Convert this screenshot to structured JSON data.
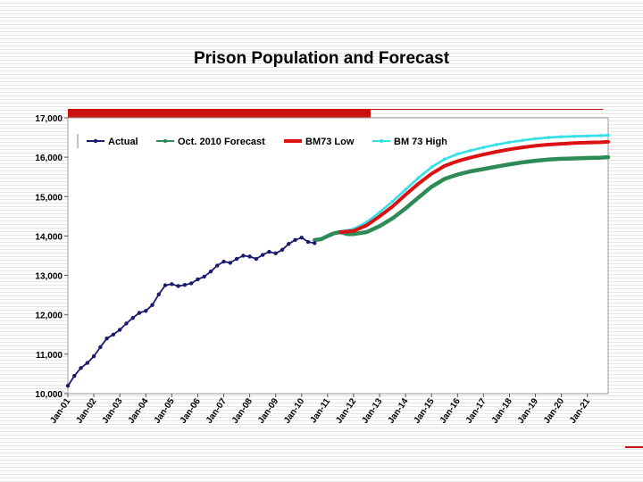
{
  "slide": {
    "title": "Prison Population and Forecast"
  },
  "chart_data": {
    "type": "line",
    "title": "Prison Population and Forecast",
    "xlabel": "",
    "ylabel": "",
    "ylim": [
      10000,
      17000
    ],
    "xlim": [
      2001.0,
      2021.8
    ],
    "y_ticks": [
      10000,
      11000,
      12000,
      13000,
      14000,
      15000,
      16000,
      17000
    ],
    "y_tick_labels": [
      "10,000",
      "11,000",
      "12,000",
      "13,000",
      "14,000",
      "15,000",
      "16,000",
      "17,000"
    ],
    "x_ticks": [
      2001,
      2002,
      2003,
      2004,
      2005,
      2006,
      2007,
      2008,
      2009,
      2010,
      2011,
      2012,
      2013,
      2014,
      2015,
      2016,
      2017,
      2018,
      2019,
      2020,
      2021
    ],
    "x_tick_labels": [
      "Jan-01",
      "Jan-02",
      "Jan-03",
      "Jan-04",
      "Jan-05",
      "Jan-06",
      "Jan-07",
      "Jan-08",
      "Jan-09",
      "Jan-10",
      "Jan-11",
      "Jan-12",
      "Jan-13",
      "Jan-14",
      "Jan-15",
      "Jan-16",
      "Jan-17",
      "Jan-18",
      "Jan-19",
      "Jan-20",
      "Jan-21"
    ],
    "grid": false,
    "legend_position": "top",
    "series": [
      {
        "name": "Actual",
        "color": "#1a1a6e",
        "marker": "dot",
        "x": [
          2001.0,
          2001.25,
          2001.5,
          2001.75,
          2002.0,
          2002.25,
          2002.5,
          2002.75,
          2003.0,
          2003.25,
          2003.5,
          2003.75,
          2004.0,
          2004.25,
          2004.5,
          2004.75,
          2005.0,
          2005.25,
          2005.5,
          2005.75,
          2006.0,
          2006.25,
          2006.5,
          2006.75,
          2007.0,
          2007.25,
          2007.5,
          2007.75,
          2008.0,
          2008.25,
          2008.5,
          2008.75,
          2009.0,
          2009.25,
          2009.5,
          2009.75,
          2010.0,
          2010.25,
          2010.5
        ],
        "values": [
          10200,
          10450,
          10650,
          10780,
          10950,
          11180,
          11400,
          11500,
          11620,
          11780,
          11920,
          12050,
          12100,
          12250,
          12520,
          12750,
          12780,
          12730,
          12760,
          12800,
          12900,
          12970,
          13100,
          13250,
          13350,
          13320,
          13420,
          13500,
          13480,
          13420,
          13520,
          13600,
          13560,
          13650,
          13800,
          13900,
          13960,
          13850,
          13820
        ]
      },
      {
        "name": "Oct. 2010 Forecast",
        "color": "#2e8b57",
        "marker": "dot",
        "x": [
          2010.5,
          2010.75,
          2011.0,
          2011.25,
          2011.5,
          2011.75,
          2012.0,
          2012.5,
          2013.0,
          2013.5,
          2014.0,
          2014.5,
          2015.0,
          2015.5,
          2016.0,
          2016.5,
          2017.0,
          2017.5,
          2018.0,
          2018.5,
          2019.0,
          2019.5,
          2020.0,
          2020.5,
          2021.0,
          2021.5,
          2021.8
        ],
        "values": [
          13900,
          13920,
          14000,
          14070,
          14100,
          14050,
          14050,
          14100,
          14250,
          14450,
          14700,
          14980,
          15250,
          15450,
          15560,
          15640,
          15700,
          15760,
          15820,
          15870,
          15910,
          15940,
          15960,
          15970,
          15980,
          15990,
          16000
        ]
      },
      {
        "name": "BM73 Low",
        "color": "#dd1111",
        "marker": "none",
        "x": [
          2011.5,
          2012.0,
          2012.5,
          2013.0,
          2013.5,
          2014.0,
          2014.5,
          2015.0,
          2015.5,
          2016.0,
          2016.5,
          2017.0,
          2017.5,
          2018.0,
          2018.5,
          2019.0,
          2019.5,
          2020.0,
          2020.5,
          2021.0,
          2021.5,
          2021.8
        ],
        "values": [
          14100,
          14130,
          14270,
          14500,
          14750,
          15050,
          15330,
          15580,
          15780,
          15900,
          15990,
          16070,
          16140,
          16200,
          16250,
          16290,
          16320,
          16340,
          16360,
          16370,
          16380,
          16390
        ]
      },
      {
        "name": "BM 73 High",
        "color": "#33e0e8",
        "marker": "dot",
        "x": [
          2011.5,
          2012.0,
          2012.5,
          2013.0,
          2013.5,
          2014.0,
          2014.5,
          2015.0,
          2015.5,
          2016.0,
          2016.5,
          2017.0,
          2017.5,
          2018.0,
          2018.5,
          2019.0,
          2019.5,
          2020.0,
          2020.5,
          2021.0,
          2021.5,
          2021.8
        ],
        "values": [
          14120,
          14180,
          14350,
          14600,
          14880,
          15180,
          15480,
          15750,
          15950,
          16080,
          16170,
          16250,
          16320,
          16380,
          16430,
          16470,
          16500,
          16520,
          16530,
          16540,
          16550,
          16560
        ]
      }
    ]
  }
}
